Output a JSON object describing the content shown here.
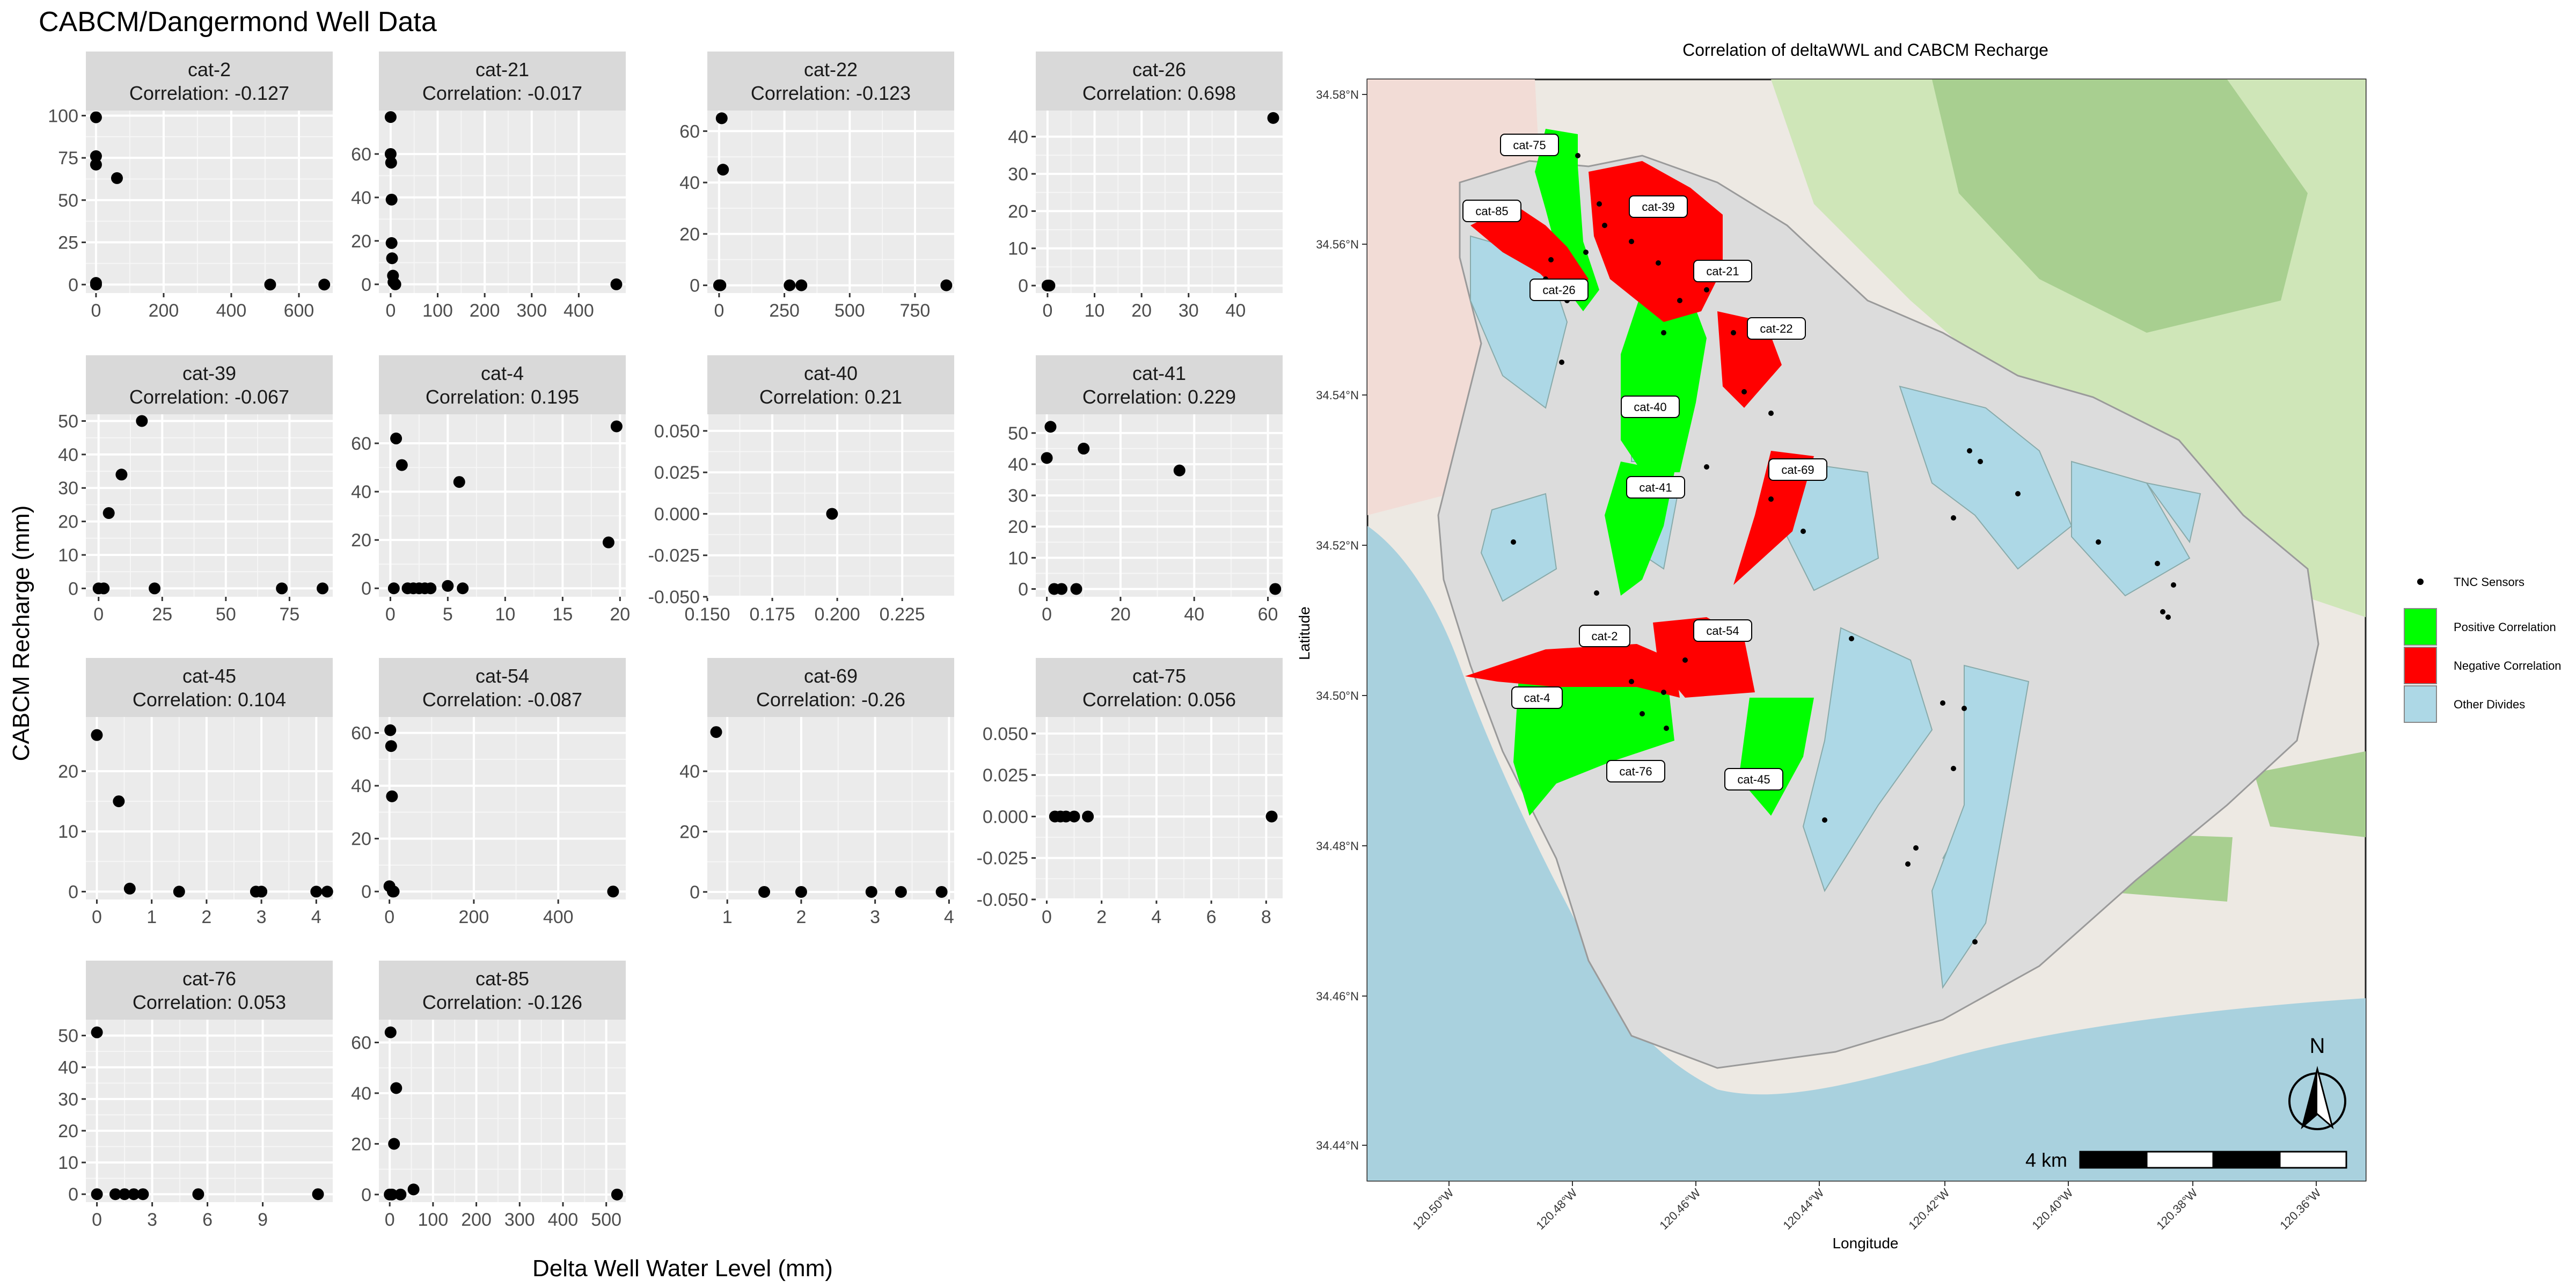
{
  "figure": {
    "title": "CABCM/Dangermond Well Data",
    "xlabel": "Delta Well Water Level (mm)",
    "ylabel": "CABCM Recharge (mm)"
  },
  "chart_data": [
    {
      "name": "cat-2",
      "type": "scatter",
      "title": "cat-2",
      "subtitle": "Correlation: -0.127",
      "xlim": [
        -30,
        700
      ],
      "ylim": [
        -5,
        103
      ],
      "xticks": [
        0,
        200,
        400,
        600
      ],
      "yticks": [
        0,
        25,
        50,
        75,
        100
      ],
      "ytick_labels": [
        "0",
        "25",
        "50",
        "75",
        "100"
      ],
      "x": [
        0,
        0,
        0,
        0,
        0,
        62,
        515,
        675
      ],
      "y": [
        99,
        76,
        71,
        1,
        0,
        63,
        0,
        0
      ]
    },
    {
      "name": "cat-21",
      "type": "scatter",
      "title": "cat-21",
      "subtitle": "Correlation: -0.017",
      "xlim": [
        -25,
        500
      ],
      "ylim": [
        -4,
        80
      ],
      "xticks": [
        0,
        100,
        200,
        300,
        400
      ],
      "yticks": [
        0,
        20,
        40,
        60
      ],
      "ytick_labels": [
        "0",
        "20",
        "40",
        "60"
      ],
      "x": [
        0,
        0,
        1,
        2,
        2,
        3,
        5,
        6,
        10,
        480
      ],
      "y": [
        77,
        60,
        56,
        39,
        19,
        12,
        4,
        1,
        0,
        0
      ]
    },
    {
      "name": "cat-22",
      "type": "scatter",
      "title": "cat-22",
      "subtitle": "Correlation: -0.123",
      "xlim": [
        -45,
        900
      ],
      "ylim": [
        -3,
        68
      ],
      "xticks": [
        0,
        250,
        500,
        750
      ],
      "yticks": [
        0,
        20,
        40,
        60
      ],
      "ytick_labels": [
        "0",
        "20",
        "40",
        "60"
      ],
      "x": [
        0,
        5,
        10,
        15,
        270,
        315,
        870
      ],
      "y": [
        0,
        0,
        65,
        45,
        0,
        0,
        0
      ]
    },
    {
      "name": "cat-26",
      "type": "scatter",
      "title": "cat-26",
      "subtitle": "Correlation: 0.698",
      "xlim": [
        -2.5,
        50
      ],
      "ylim": [
        -2,
        47
      ],
      "xticks": [
        0,
        10,
        20,
        30,
        40
      ],
      "yticks": [
        0,
        10,
        20,
        30,
        40
      ],
      "ytick_labels": [
        "0",
        "10",
        "20",
        "30",
        "40"
      ],
      "x": [
        0,
        0.2,
        0.4,
        48
      ],
      "y": [
        0,
        0,
        0,
        45
      ]
    },
    {
      "name": "cat-39",
      "type": "scatter",
      "title": "cat-39",
      "subtitle": "Correlation: -0.067",
      "xlim": [
        -5,
        92
      ],
      "ylim": [
        -2.5,
        52
      ],
      "xticks": [
        0,
        25,
        50,
        75
      ],
      "yticks": [
        0,
        10,
        20,
        30,
        40,
        50
      ],
      "ytick_labels": [
        "0",
        "10",
        "20",
        "30",
        "40",
        "50"
      ],
      "x": [
        0,
        2,
        4,
        9,
        17,
        22,
        72,
        88
      ],
      "y": [
        0,
        0,
        22.5,
        34,
        50,
        0,
        0,
        0
      ]
    },
    {
      "name": "cat-4",
      "type": "scatter",
      "title": "cat-4",
      "subtitle": "Correlation: 0.195",
      "xlim": [
        -1,
        20.5
      ],
      "ylim": [
        -3.5,
        72
      ],
      "xticks": [
        0,
        5,
        10,
        15,
        20
      ],
      "yticks": [
        0,
        20,
        40,
        60
      ],
      "ytick_labels": [
        "0",
        "20",
        "40",
        "60"
      ],
      "x": [
        0.3,
        0.5,
        1,
        1.5,
        2,
        2.5,
        3,
        3.5,
        5,
        6,
        6.3,
        19,
        19.7
      ],
      "y": [
        0,
        62,
        51,
        0,
        0,
        0,
        0,
        0,
        1,
        44,
        0,
        19,
        67
      ]
    },
    {
      "name": "cat-40",
      "type": "scatter",
      "title": "cat-40",
      "subtitle": "Correlation: 0.21",
      "xlim": [
        0.15,
        0.245
      ],
      "ylim": [
        -0.05,
        0.06
      ],
      "xticks": [
        0.15,
        0.175,
        0.2,
        0.225
      ],
      "xtick_labels": [
        "0.150",
        "0.175",
        "0.200",
        "0.225"
      ],
      "yticks": [
        -0.05,
        -0.025,
        0,
        0.025,
        0.05
      ],
      "ytick_labels": [
        "-0.050",
        "-0.025",
        "0.000",
        "0.025",
        "0.050"
      ],
      "x": [
        0.198
      ],
      "y": [
        0
      ]
    },
    {
      "name": "cat-41",
      "type": "scatter",
      "title": "cat-41",
      "subtitle": "Correlation: 0.229",
      "xlim": [
        -3,
        64
      ],
      "ylim": [
        -2.5,
        56
      ],
      "xticks": [
        0,
        20,
        40,
        60
      ],
      "yticks": [
        0,
        10,
        20,
        30,
        40,
        50
      ],
      "ytick_labels": [
        "0",
        "10",
        "20",
        "30",
        "40",
        "50"
      ],
      "x": [
        0,
        1,
        2,
        4,
        8,
        10,
        36,
        62
      ],
      "y": [
        42,
        52,
        0,
        0,
        0,
        45,
        38,
        0
      ]
    },
    {
      "name": "cat-45",
      "type": "scatter",
      "title": "cat-45",
      "subtitle": "Correlation: 0.104",
      "xlim": [
        -0.2,
        4.3
      ],
      "ylim": [
        -1.3,
        29
      ],
      "xticks": [
        0,
        1,
        2,
        3,
        4
      ],
      "yticks": [
        0,
        10,
        20
      ],
      "ytick_labels": [
        "0",
        "10",
        "20"
      ],
      "x": [
        0,
        0.4,
        0.6,
        1.5,
        2.9,
        3,
        4,
        4.2
      ],
      "y": [
        26,
        15,
        0.5,
        0,
        0,
        0,
        0,
        0
      ]
    },
    {
      "name": "cat-54",
      "type": "scatter",
      "title": "cat-54",
      "subtitle": "Correlation: -0.087",
      "xlim": [
        -25,
        560
      ],
      "ylim": [
        -3,
        66
      ],
      "xticks": [
        0,
        200,
        400
      ],
      "yticks": [
        0,
        20,
        40,
        60
      ],
      "ytick_labels": [
        "0",
        "20",
        "40",
        "60"
      ],
      "x": [
        0,
        2,
        4,
        6,
        8,
        10,
        530
      ],
      "y": [
        2,
        61,
        55,
        36,
        0,
        0,
        0
      ]
    },
    {
      "name": "cat-69",
      "type": "scatter",
      "title": "cat-69",
      "subtitle": "Correlation: -0.26",
      "xlim": [
        0.73,
        4.07
      ],
      "ylim": [
        -2.5,
        58
      ],
      "xticks": [
        1,
        2,
        3,
        4
      ],
      "yticks": [
        0,
        20,
        40
      ],
      "ytick_labels": [
        "0",
        "20",
        "40"
      ],
      "x": [
        0.85,
        1.5,
        2,
        2.95,
        3.35,
        3.9
      ],
      "y": [
        53,
        0,
        0,
        0,
        0,
        0
      ]
    },
    {
      "name": "cat-75",
      "type": "scatter",
      "title": "cat-75",
      "subtitle": "Correlation: 0.056",
      "xlim": [
        -0.4,
        8.6
      ],
      "ylim": [
        -0.05,
        0.06
      ],
      "xticks": [
        0,
        2,
        4,
        6,
        8
      ],
      "yticks": [
        -0.05,
        -0.025,
        0,
        0.025,
        0.05
      ],
      "ytick_labels": [
        "-0.050",
        "-0.025",
        "0.000",
        "0.025",
        "0.050"
      ],
      "x": [
        0.3,
        0.5,
        0.7,
        1,
        1.5,
        8.2
      ],
      "y": [
        0,
        0,
        0,
        0,
        0,
        0
      ]
    },
    {
      "name": "cat-76",
      "type": "scatter",
      "title": "cat-76",
      "subtitle": "Correlation: 0.053",
      "xlim": [
        -0.6,
        12.8
      ],
      "ylim": [
        -2.5,
        55
      ],
      "xticks": [
        0,
        3,
        6,
        9
      ],
      "yticks": [
        0,
        10,
        20,
        30,
        40,
        50
      ],
      "ytick_labels": [
        "0",
        "10",
        "20",
        "30",
        "40",
        "50"
      ],
      "x": [
        0,
        0,
        1,
        1.5,
        2,
        2.5,
        5.5,
        12
      ],
      "y": [
        51,
        0,
        0,
        0,
        0,
        0,
        0,
        0
      ]
    },
    {
      "name": "cat-85",
      "type": "scatter",
      "title": "cat-85",
      "subtitle": "Correlation: -0.126",
      "xlim": [
        -25,
        545
      ],
      "ylim": [
        -3,
        69
      ],
      "xticks": [
        0,
        100,
        200,
        300,
        400,
        500
      ],
      "yticks": [
        0,
        20,
        40,
        60
      ],
      "ytick_labels": [
        "0",
        "20",
        "40",
        "60"
      ],
      "x": [
        0,
        2,
        5,
        10,
        15,
        25,
        55,
        525
      ],
      "y": [
        0,
        64,
        0,
        20,
        42,
        0,
        2,
        0
      ]
    }
  ],
  "map": {
    "title": "Correlation of deltaWWL and CABCM Recharge",
    "xlabel": "Longitude",
    "ylabel": "Latitude",
    "lat_labels": [
      "34.58°N",
      "34.56°N",
      "34.54°N",
      "34.52°N",
      "34.50°N",
      "34.48°N",
      "34.46°N",
      "34.44°N"
    ],
    "lon_labels": [
      "120.50°W",
      "120.48°W",
      "120.46°W",
      "120.44°W",
      "120.42°W",
      "120.40°W",
      "120.38°W",
      "120.36°W"
    ],
    "scale_text": "4 km",
    "north_label": "N",
    "legend": [
      {
        "label": "TNC Sensors",
        "kind": "point",
        "color": "#000000"
      },
      {
        "label": "Positive Correlation",
        "kind": "fill",
        "color": "#00ff00"
      },
      {
        "label": "Negative Correlation",
        "kind": "fill",
        "color": "#ff0000"
      },
      {
        "label": "Other Divides",
        "kind": "fill",
        "color": "#add8e6"
      }
    ],
    "catchment_labels": [
      "cat-75",
      "cat-85",
      "cat-39",
      "cat-21",
      "cat-26",
      "cat-22",
      "cat-40",
      "cat-41",
      "cat-69",
      "cat-2",
      "cat-54",
      "cat-4",
      "cat-76",
      "cat-45"
    ]
  }
}
